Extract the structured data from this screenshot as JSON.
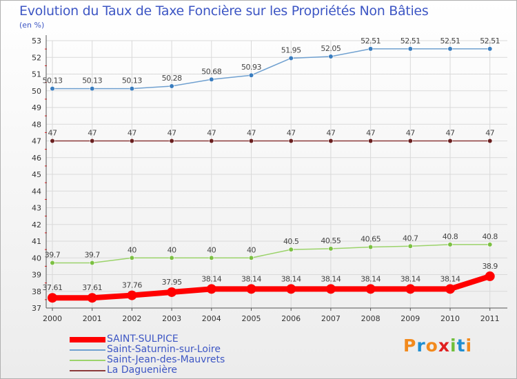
{
  "title": "Evolution du Taux de Taxe Foncière sur les Propriétés Non Bâties",
  "unit": "(en %)",
  "logo": [
    "P",
    "r",
    "o",
    "x",
    "i",
    "t",
    "i"
  ],
  "chart_data": {
    "type": "line",
    "title": "Evolution du Taux de Taxe Foncière sur les Propriétés Non Bâties",
    "ylabel": "(en %)",
    "xlabel": "",
    "ylim": [
      37,
      53
    ],
    "yticks": [
      37,
      38,
      39,
      40,
      41,
      42,
      43,
      44,
      45,
      46,
      47,
      48,
      49,
      50,
      51,
      52,
      53
    ],
    "categories": [
      "2000",
      "2001",
      "2002",
      "2003",
      "2004",
      "2005",
      "2006",
      "2007",
      "2008",
      "2009",
      "2010",
      "2011"
    ],
    "series": [
      {
        "name": "Saint-Saturnin-sur-Loire",
        "color": "#6fa0d0",
        "marker": "#3a7dbf",
        "values": [
          50.13,
          50.13,
          50.13,
          50.28,
          50.68,
          50.93,
          51.95,
          52.05,
          52.51,
          52.51,
          52.51,
          52.51
        ],
        "labels": [
          "50.13",
          "50.13",
          "50.13",
          "50.28",
          "50.68",
          "50.93",
          "51.95",
          "52.05",
          "52.51",
          "52.51",
          "52.51",
          "52.51"
        ]
      },
      {
        "name": "La Daguenière",
        "color": "#8b3a3a",
        "marker": "#6a2020",
        "values": [
          47,
          47,
          47,
          47,
          47,
          47,
          47,
          47,
          47,
          47,
          47,
          47
        ],
        "labels": [
          "47",
          "47",
          "47",
          "47",
          "47",
          "47",
          "47",
          "47",
          "47",
          "47",
          "47",
          "47"
        ]
      },
      {
        "name": "Saint-Jean-des-Mauvrets",
        "color": "#9bd36a",
        "marker": "#7cc043",
        "values": [
          39.7,
          39.7,
          40,
          40,
          40,
          40,
          40.5,
          40.55,
          40.65,
          40.7,
          40.8,
          40.8
        ],
        "labels": [
          "39.7",
          "39.7",
          "40",
          "40",
          "40",
          "40",
          "40.5",
          "40.55",
          "40.65",
          "40.7",
          "40.8",
          "40.8"
        ]
      },
      {
        "name": "SAINT-SULPICE",
        "color": "#ff0000",
        "marker": "#ff0000",
        "values": [
          37.61,
          37.61,
          37.76,
          37.95,
          38.14,
          38.14,
          38.14,
          38.14,
          38.14,
          38.14,
          38.14,
          38.9
        ],
        "labels": [
          "37.61",
          "37.61",
          "37.76",
          "37.95",
          "38.14",
          "38.14",
          "38.14",
          "38.14",
          "38.14",
          "38.14",
          "38.14",
          "38.9"
        ]
      }
    ],
    "legend": [
      {
        "name": "SAINT-SULPICE",
        "color": "#ff0000",
        "weight": "thick"
      },
      {
        "name": "Saint-Saturnin-sur-Loire",
        "color": "#6fa0d0",
        "weight": "thin"
      },
      {
        "name": "Saint-Jean-des-Mauvrets",
        "color": "#9bd36a",
        "weight": "thin"
      },
      {
        "name": "La Daguenière",
        "color": "#8b3a3a",
        "weight": "thin"
      }
    ]
  }
}
